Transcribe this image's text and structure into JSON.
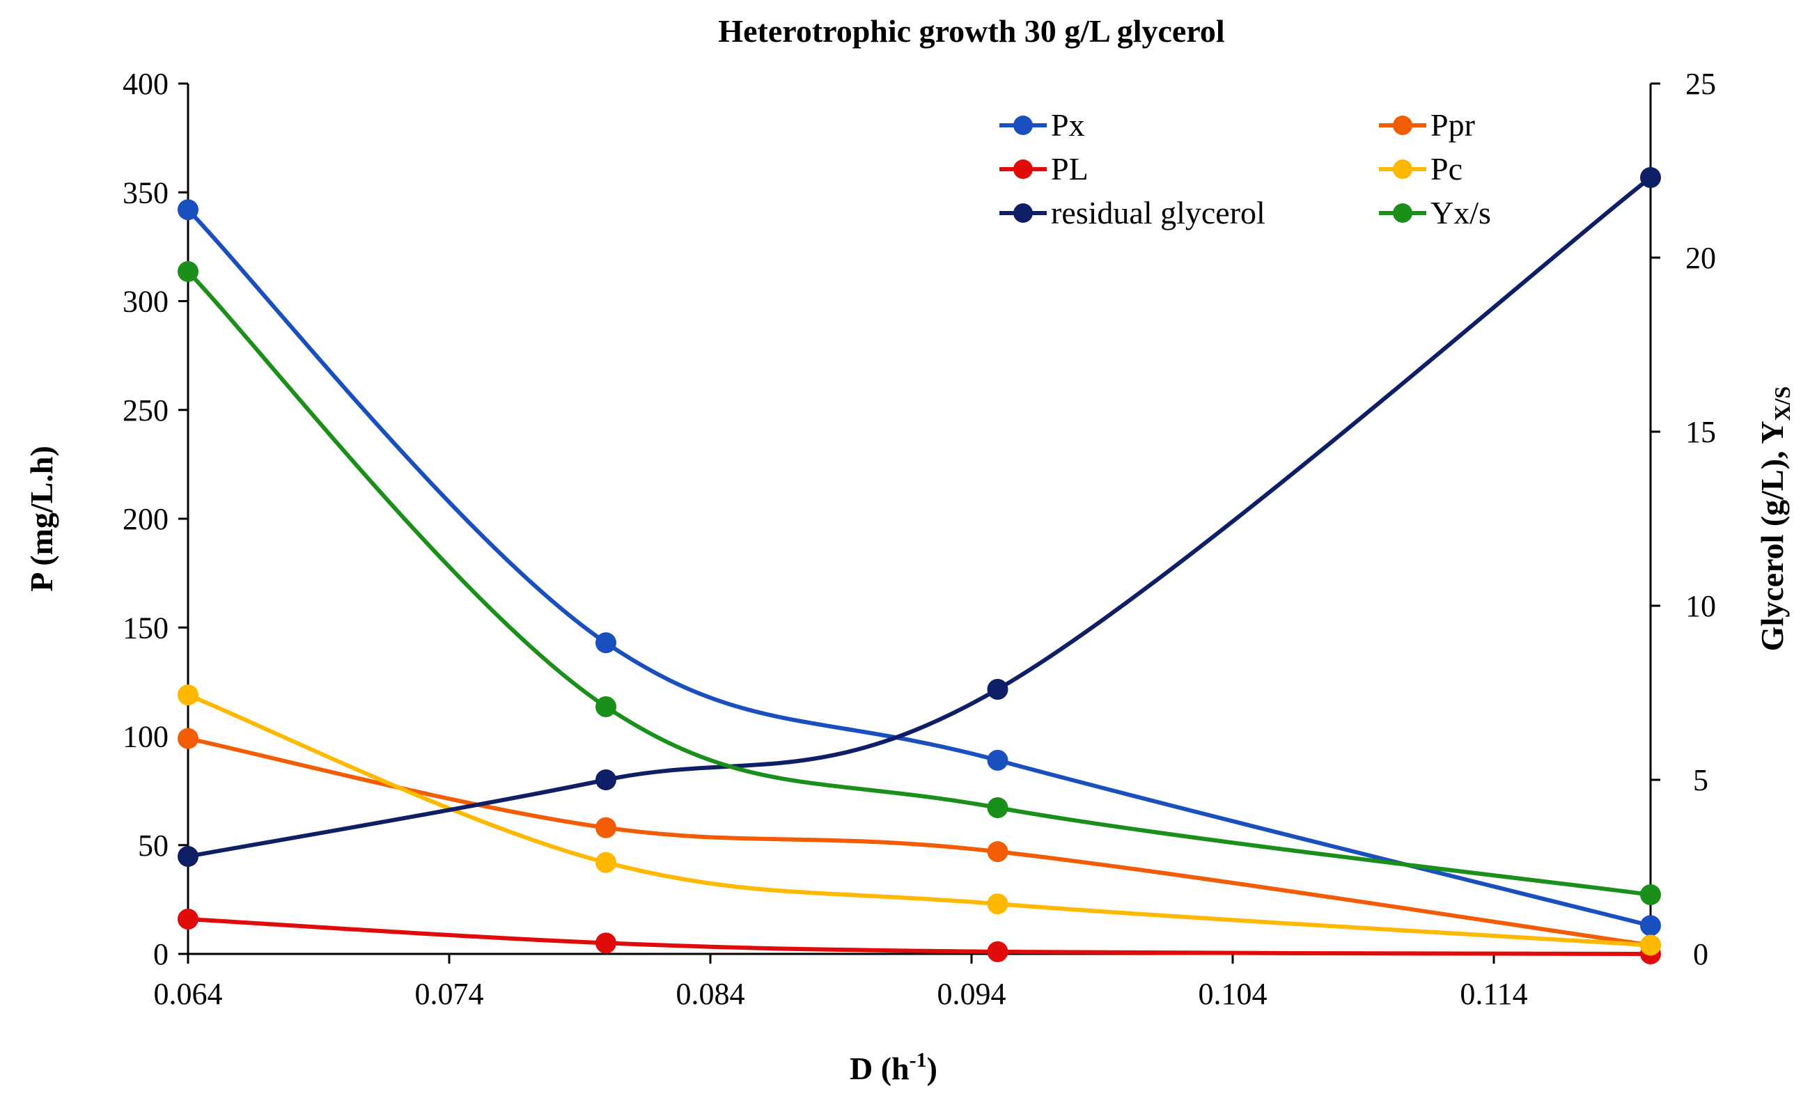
{
  "chart_data": {
    "type": "line",
    "title": "Heterotrophic growth 30 g/L glycerol",
    "xlabel_main": "D (h",
    "xlabel_sup": "-1",
    "xlabel_end": ")",
    "ylabel": "P (mg/L.h)",
    "y2label_main": "Glycerol (g/L), Y",
    "y2label_sub": "X/S",
    "xlim": [
      0.064,
      0.12
    ],
    "xticks": [
      0.064,
      0.074,
      0.084,
      0.094,
      0.104,
      0.114
    ],
    "xtick_labels": [
      "0.064",
      "0.074",
      "0.084",
      "0.094",
      "0.104",
      "0.114"
    ],
    "ylim": [
      0,
      400
    ],
    "yticks": [
      0,
      50,
      100,
      150,
      200,
      250,
      300,
      350,
      400
    ],
    "y2lim": [
      0,
      25
    ],
    "y2ticks": [
      0,
      5,
      10,
      15,
      20,
      25
    ],
    "grid": false,
    "legend_position": "top-right",
    "x": [
      0.064,
      0.08,
      0.095,
      0.12
    ],
    "series": [
      {
        "name": "Px",
        "axis": "left",
        "color": "#1a4fbf",
        "values": [
          342,
          143,
          89,
          13
        ]
      },
      {
        "name": "Ppr",
        "axis": "left",
        "color": "#f25c05",
        "values": [
          99,
          58,
          47,
          4
        ]
      },
      {
        "name": "PL",
        "axis": "left",
        "color": "#e00b0b",
        "values": [
          16,
          5,
          1,
          0
        ]
      },
      {
        "name": "Pc",
        "axis": "left",
        "color": "#ffb800",
        "values": [
          119,
          42,
          23,
          4
        ]
      },
      {
        "name": "residual glycerol",
        "axis": "right",
        "color": "#0f1f66",
        "values": [
          2.8,
          5.0,
          7.6,
          22.3
        ]
      },
      {
        "name": "Yx/s",
        "axis": "right",
        "color": "#1a8f1a",
        "values": [
          19.6,
          7.1,
          4.2,
          1.7
        ]
      }
    ]
  }
}
